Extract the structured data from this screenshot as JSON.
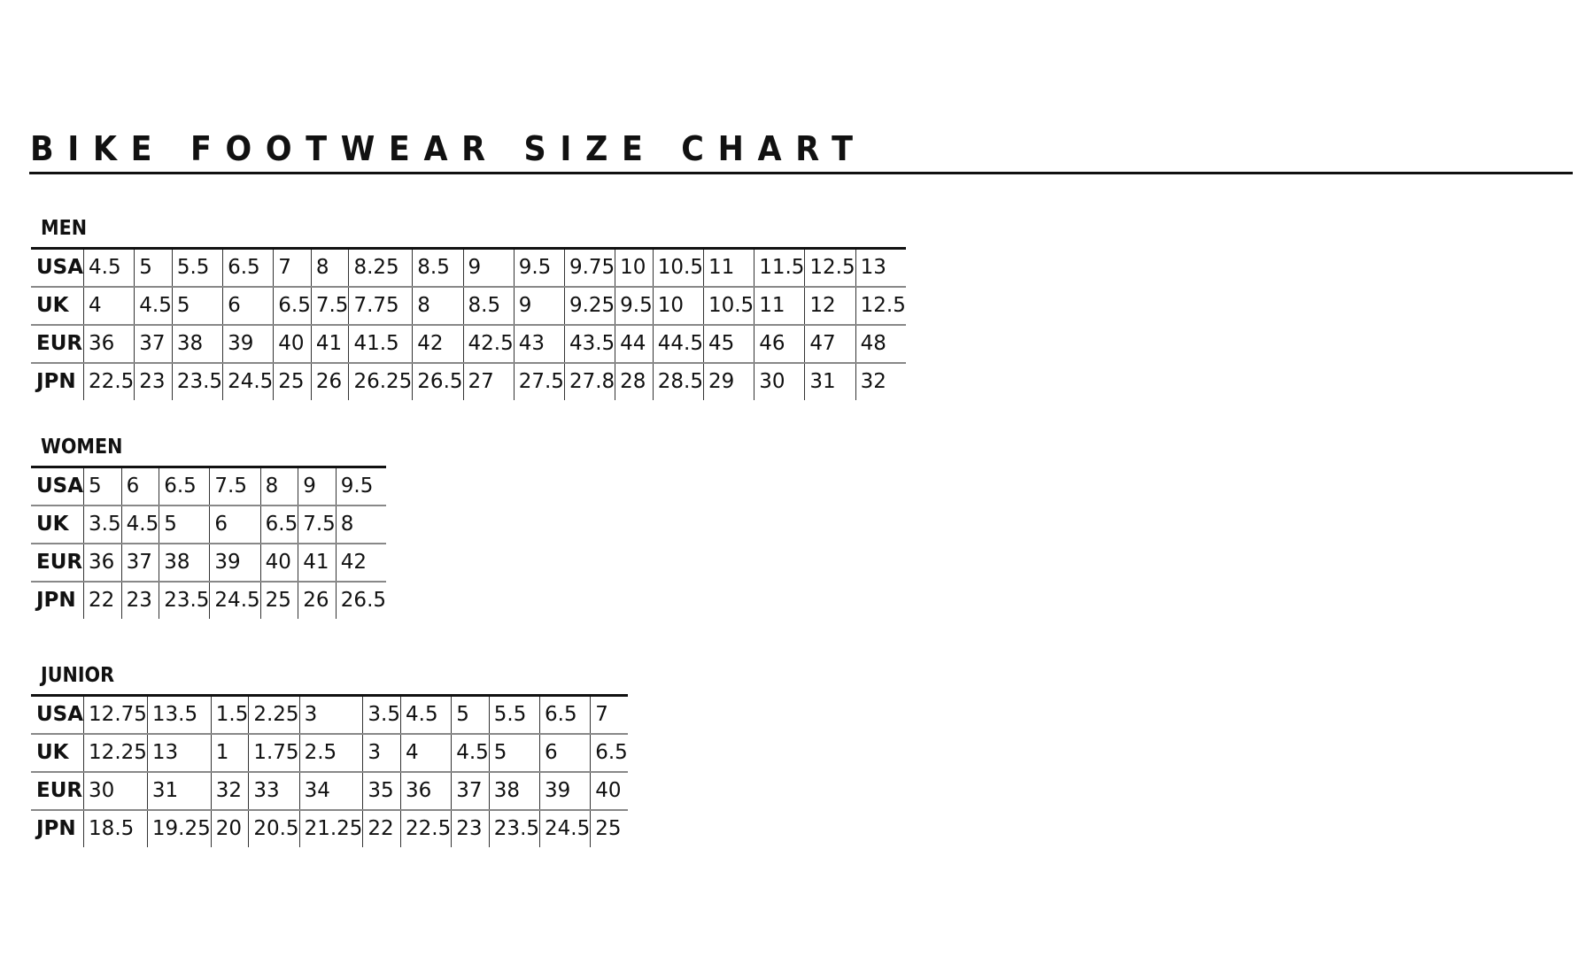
{
  "title": "BIKE FOOTWEAR SIZE CHART",
  "sections": [
    {
      "name": "MEN",
      "rows": [
        {
          "label": "USA",
          "values": [
            "4.5",
            "5",
            "5.5",
            "6.5",
            "7",
            "8",
            "8.25",
            "8.5",
            "9",
            "9.5",
            "9.75",
            "10",
            "10.5",
            "11",
            "11.5",
            "12.5",
            "13"
          ]
        },
        {
          "label": "UK",
          "values": [
            "4",
            "4.5",
            "5",
            "6",
            "6.5",
            "7.5",
            "7.75",
            "8",
            "8.5",
            "9",
            "9.25",
            "9.5",
            "10",
            "10.5",
            "11",
            "12",
            "12.5"
          ]
        },
        {
          "label": "EUR",
          "values": [
            "36",
            "37",
            "38",
            "39",
            "40",
            "41",
            "41.5",
            "42",
            "42.5",
            "43",
            "43.5",
            "44",
            "44.5",
            "45",
            "46",
            "47",
            "48"
          ]
        },
        {
          "label": "JPN",
          "values": [
            "22.5",
            "23",
            "23.5",
            "24.5",
            "25",
            "26",
            "26.25",
            "26.5",
            "27",
            "27.5",
            "27.8",
            "28",
            "28.5",
            "29",
            "30",
            "31",
            "32"
          ]
        }
      ]
    },
    {
      "name": "WOMEN",
      "rows": [
        {
          "label": "USA",
          "values": [
            "5",
            "6",
            "6.5",
            "7.5",
            "8",
            "9",
            "9.5"
          ]
        },
        {
          "label": "UK",
          "values": [
            "3.5",
            "4.5",
            "5",
            "6",
            "6.5",
            "7.5",
            "8"
          ]
        },
        {
          "label": "EUR",
          "values": [
            "36",
            "37",
            "38",
            "39",
            "40",
            "41",
            "42"
          ]
        },
        {
          "label": "JPN",
          "values": [
            "22",
            "23",
            "23.5",
            "24.5",
            "25",
            "26",
            "26.5"
          ]
        }
      ]
    },
    {
      "name": "JUNIOR",
      "rows": [
        {
          "label": "USA",
          "values": [
            "12.75",
            "13.5",
            "1.5",
            "2.25",
            "3",
            "3.5",
            "4.5",
            "5",
            "5.5",
            "6.5",
            "7"
          ]
        },
        {
          "label": "UK",
          "values": [
            "12.25",
            "13",
            "1",
            "1.75",
            "2.5",
            "3",
            "4",
            "4.5",
            "5",
            "6",
            "6.5"
          ]
        },
        {
          "label": "EUR",
          "values": [
            "30",
            "31",
            "32",
            "33",
            "34",
            "35",
            "36",
            "37",
            "38",
            "39",
            "40"
          ]
        },
        {
          "label": "JPN",
          "values": [
            "18.5",
            "19.25",
            "20",
            "20.5",
            "21.25",
            "22",
            "22.5",
            "23",
            "23.5",
            "24.5",
            "25"
          ]
        }
      ]
    }
  ]
}
